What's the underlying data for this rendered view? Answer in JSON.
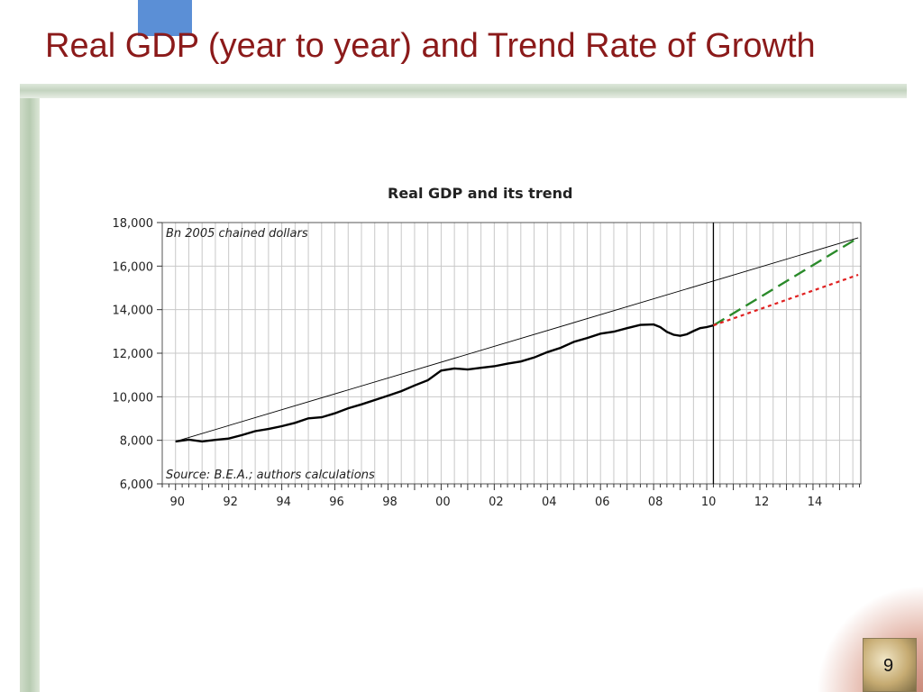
{
  "slide": {
    "title": "Real GDP (year to year) and Trend Rate of Growth",
    "page_number": "9"
  },
  "chart_data": {
    "type": "line",
    "title": "Real GDP and its trend",
    "unit_note": "Bn 2005 chained dollars",
    "source_note": "Source: B.E.A.; authors calculations",
    "ylim": [
      6000,
      18000
    ],
    "xlim": [
      1989.5,
      2015.8
    ],
    "y_ticks": [
      6000,
      8000,
      10000,
      12000,
      14000,
      16000,
      18000
    ],
    "y_tick_labels": [
      "6,000",
      "8,000",
      "10,000",
      "12,000",
      "14,000",
      "16,000",
      "18,000"
    ],
    "x_ticks": [
      1990,
      1992,
      1994,
      1996,
      1998,
      2000,
      2002,
      2004,
      2006,
      2008,
      2010,
      2012,
      2014
    ],
    "x_tick_labels": [
      "90",
      "92",
      "94",
      "96",
      "98",
      "00",
      "02",
      "04",
      "06",
      "08",
      "10",
      "12",
      "14"
    ],
    "grid": true,
    "vertical_marker_x": 2010.25,
    "series": [
      {
        "color": "#000000",
        "style": "thick",
        "x": [
          1990,
          1990.5,
          1991,
          1991.5,
          1992,
          1992.5,
          1993,
          1993.5,
          1994,
          1994.5,
          1995,
          1995.5,
          1996,
          1996.5,
          1997,
          1997.5,
          1998,
          1998.5,
          1999,
          1999.5,
          2000,
          2000.5,
          2001,
          2001.5,
          2002,
          2002.5,
          2003,
          2003.5,
          2004,
          2004.5,
          2005,
          2005.5,
          2006,
          2006.5,
          2007,
          2007.5,
          2008,
          2008.25,
          2008.5,
          2008.75,
          2009,
          2009.25,
          2009.5,
          2009.75,
          2010,
          2010.25
        ],
        "y": [
          7950,
          8030,
          7950,
          8020,
          8080,
          8240,
          8420,
          8520,
          8650,
          8800,
          9010,
          9060,
          9240,
          9470,
          9650,
          9850,
          10050,
          10260,
          10520,
          10760,
          11200,
          11300,
          11250,
          11330,
          11400,
          11520,
          11620,
          11800,
          12050,
          12250,
          12520,
          12700,
          12900,
          12990,
          13150,
          13300,
          13320,
          13200,
          12980,
          12850,
          12800,
          12870,
          13020,
          13150,
          13200,
          13280
        ]
      },
      {
        "color": "#000000",
        "style": "thin",
        "x": [
          1990,
          2015.7
        ],
        "y": [
          7950,
          17300
        ]
      },
      {
        "color": "#2a8a2a",
        "style": "dashed",
        "x": [
          2010.25,
          2015.7
        ],
        "y": [
          13280,
          17300
        ]
      },
      {
        "color": "#e02020",
        "style": "dotted",
        "x": [
          2010.25,
          2015.7
        ],
        "y": [
          13280,
          15600
        ]
      }
    ]
  }
}
